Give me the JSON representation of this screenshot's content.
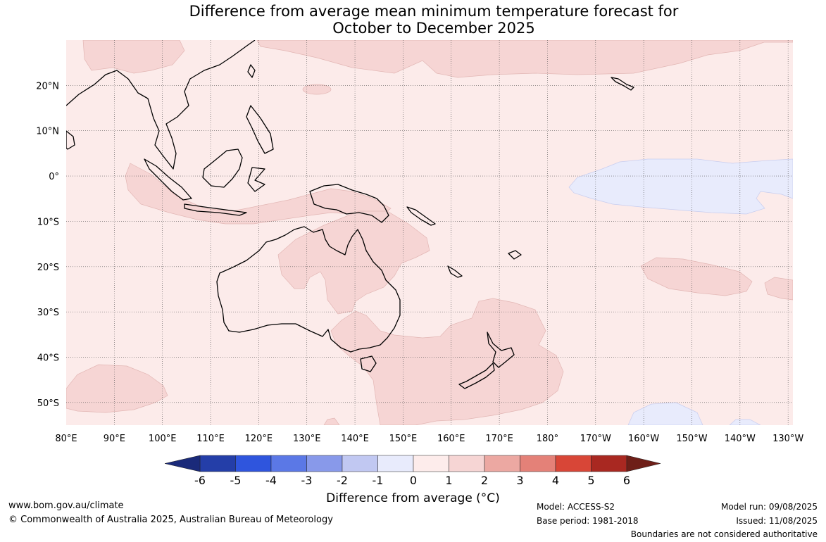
{
  "title": {
    "line1": "Difference from average mean minimum temperature forecast for",
    "line2": "October to December 2025"
  },
  "map": {
    "lon_range": [
      80,
      231
    ],
    "lat_range": [
      -55,
      30
    ],
    "lon_labels": [
      "80°E",
      "90°E",
      "100°E",
      "110°E",
      "120°E",
      "130°E",
      "140°E",
      "150°E",
      "160°E",
      "170°E",
      "180°",
      "170°W",
      "160°W",
      "150°W",
      "140°W",
      "130°W"
    ],
    "lat_labels": [
      "20°N",
      "10°N",
      "0°",
      "10°S",
      "20°S",
      "30°S",
      "40°S",
      "50°S"
    ],
    "regions": [
      {
        "name": "cool anomaly central Pacific",
        "category": "-1 to 0"
      },
      {
        "name": "cool anomaly south-east Pacific",
        "category": "-1 to 0"
      },
      {
        "name": "warm anomaly north-west Pacific",
        "category": "1 to 2"
      },
      {
        "name": "warm anomaly northern Australia",
        "category": "1 to 2"
      },
      {
        "name": "warm anomaly eastern Australia and Tasman Sea",
        "category": "1 to 2"
      },
      {
        "name": "warm anomaly Indonesia",
        "category": "1 to 2"
      },
      {
        "name": "warm anomaly south-west Pacific",
        "category": "1 to 2"
      }
    ]
  },
  "colorbar": {
    "ticks": [
      "-6",
      "-5",
      "-4",
      "-3",
      "-2",
      "-1",
      "0",
      "1",
      "2",
      "3",
      "4",
      "5",
      "6"
    ],
    "colors": [
      "#243ea8",
      "#2f55dd",
      "#5b78e6",
      "#8899ea",
      "#c1c8f2",
      "#e8ebfc",
      "#fdeceb",
      "#f6d5d4",
      "#eca8a2",
      "#e48178",
      "#d84637",
      "#a92821"
    ],
    "under_color": "#1a2a7a",
    "over_color": "#6e1f18",
    "label": "Difference from average (°C)"
  },
  "footer": {
    "url": "www.bom.gov.au/climate",
    "copyright": "© Commonwealth of Australia 2025, Australian Bureau of Meteorology",
    "model": "Model: ACCESS-S2",
    "base_period": "Base period: 1981-2018",
    "model_run": "Model run: 09/08/2025",
    "issued": "Issued: 11/08/2025",
    "boundaries": "Boundaries are not considered authoritative"
  }
}
